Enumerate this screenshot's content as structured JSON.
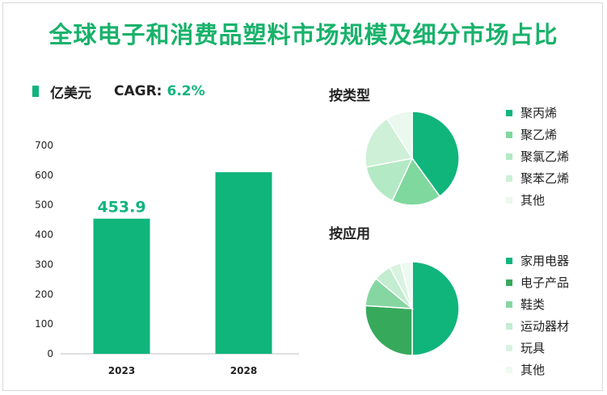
{
  "title": "全球电子和消费品塑料市场规模及细分市场占比",
  "legend": {
    "unit": "亿美元",
    "cagr_label": "CAGR:",
    "cagr_value": "6.2%"
  },
  "colors": {
    "title": "#19b26b",
    "bar": "#10b57c"
  },
  "chart_data": [
    {
      "type": "bar",
      "categories": [
        "2023",
        "2028"
      ],
      "values": [
        453.9,
        610
      ],
      "data_labels": [
        "453.9",
        ""
      ],
      "ylim": [
        0,
        700
      ],
      "yticks": [
        0,
        100,
        200,
        300,
        400,
        500,
        600,
        700
      ],
      "grid": false
    },
    {
      "type": "pie",
      "title": "按类型",
      "labels": [
        "聚丙烯",
        "聚乙烯",
        "聚氯乙烯",
        "聚苯乙烯",
        "其他"
      ],
      "values": [
        40,
        17,
        15,
        19,
        9
      ],
      "colors": [
        "#10b57c",
        "#7fd89d",
        "#b3e9c4",
        "#cdf0d6",
        "#eaf8ee"
      ],
      "legend": "right"
    },
    {
      "type": "pie",
      "title": "按应用",
      "labels": [
        "家用电器",
        "电子产品",
        "鞋类",
        "运动器材",
        "玩具",
        "其他"
      ],
      "values": [
        50,
        26,
        10,
        6,
        4,
        4
      ],
      "colors": [
        "#10b57c",
        "#37a95b",
        "#86d6a1",
        "#c3ecd1",
        "#d9f3e1",
        "#eef9f2"
      ],
      "legend": "right"
    }
  ]
}
